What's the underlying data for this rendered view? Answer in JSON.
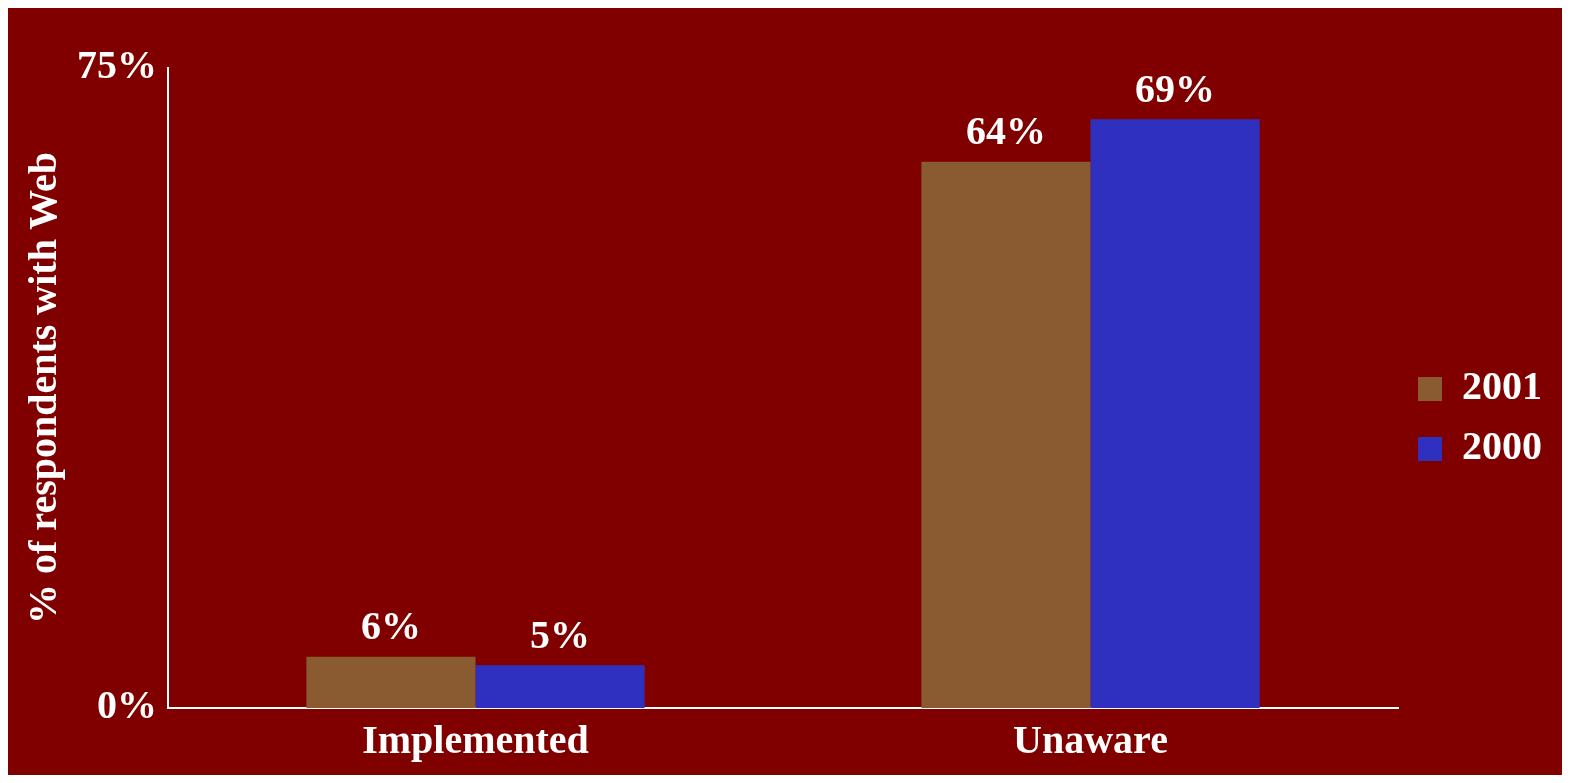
{
  "chart_data": {
    "type": "bar",
    "ylabel": "% of respondents with Web",
    "categories": [
      "Implemented",
      "Unaware"
    ],
    "series": [
      {
        "name": "2001",
        "color": "#8a5a30",
        "values": [
          6,
          64
        ],
        "value_labels": [
          "6%",
          "64%"
        ]
      },
      {
        "name": "2000",
        "color": "#3030c0",
        "values": [
          5,
          69
        ],
        "value_labels": [
          "5%",
          "69%"
        ]
      }
    ],
    "ylim": [
      0,
      75
    ],
    "yticks": [
      {
        "value": 0,
        "label": "0%"
      },
      {
        "value": 75,
        "label": "75%"
      }
    ],
    "grid": false,
    "legend": "right"
  }
}
